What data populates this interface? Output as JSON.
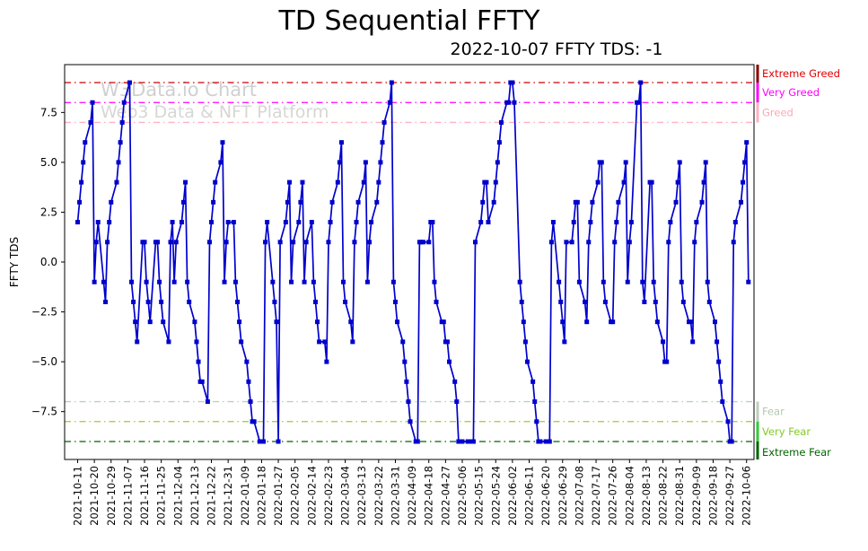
{
  "header": {
    "title": "TD Sequential FFTY",
    "subtitle": "2022-10-07 FFTY TDS: -1"
  },
  "watermark": {
    "line1": "W3Data.io Chart",
    "line2": "Web3 Data & NFT Platform"
  },
  "chart_data": {
    "type": "line",
    "title": "TD Sequential FFTY",
    "subtitle": "2022-10-07 FFTY TDS: -1",
    "ylabel": "FFTY TDS",
    "ylim": [
      -9.9,
      9.9
    ],
    "x_start": "2021-10-11",
    "x_domain_days": [
      -7,
      364
    ],
    "grid": false,
    "legend": "none",
    "line_color": "#0000cd",
    "marker": "square",
    "yticks": [
      {
        "value": 7.5,
        "label": "7.5"
      },
      {
        "value": 5.0,
        "label": "5.0"
      },
      {
        "value": 2.5,
        "label": "2.5"
      },
      {
        "value": 0.0,
        "label": "0.0"
      },
      {
        "value": -2.5,
        "label": "−2.5"
      },
      {
        "value": -5.0,
        "label": "−5.0"
      },
      {
        "value": -7.5,
        "label": "−7.5"
      }
    ],
    "xtick_labels": [
      "2021-10-11",
      "2021-10-20",
      "2021-10-29",
      "2021-11-07",
      "2021-11-16",
      "2021-11-25",
      "2021-12-04",
      "2021-12-13",
      "2021-12-22",
      "2021-12-31",
      "2022-01-09",
      "2022-01-18",
      "2022-01-27",
      "2022-02-05",
      "2022-02-14",
      "2022-02-23",
      "2022-03-04",
      "2022-03-13",
      "2022-03-22",
      "2022-03-31",
      "2022-04-09",
      "2022-04-18",
      "2022-04-27",
      "2022-05-06",
      "2022-05-15",
      "2022-05-24",
      "2022-06-02",
      "2022-06-11",
      "2022-06-20",
      "2022-06-29",
      "2022-07-08",
      "2022-07-17",
      "2022-07-26",
      "2022-08-04",
      "2022-08-13",
      "2022-08-22",
      "2022-08-31",
      "2022-09-09",
      "2022-09-18",
      "2022-09-27",
      "2022-10-06"
    ],
    "thresholds": [
      {
        "value": 9,
        "label": "Extreme Greed",
        "line_color": "#cc0000",
        "label_color": "#e00000",
        "band": [
          9,
          9.9
        ],
        "band_color": "#8b0000",
        "label_at": 9.45
      },
      {
        "value": 8,
        "label": "Very Greed",
        "line_color": "#ff00ff",
        "label_color": "#ff00ff",
        "band": [
          8,
          9
        ],
        "band_color": "#ff00ff",
        "label_at": 8.5
      },
      {
        "value": 7,
        "label": "Greed",
        "line_color": "#ffb0c0",
        "label_color": "#ffa6b8",
        "band": [
          7,
          8
        ],
        "band_color": "#ffb0c0",
        "label_at": 7.5
      },
      {
        "value": -7,
        "label": "Fear",
        "line_color": "#bccfbc",
        "label_color": "#b4c8b4",
        "band": [
          -7,
          -8
        ],
        "band_color": "#bccfbc",
        "label_at": -7.5
      },
      {
        "value": -8,
        "label": "Very Fear",
        "line_color": "#9acd32",
        "label_color": "#86c82a",
        "band": [
          -8,
          -9
        ],
        "band_color": "#33cc33",
        "label_at": -8.5
      },
      {
        "value": -9,
        "label": "Extreme Fear",
        "line_color": "#006400",
        "label_color": "#006400",
        "band": [
          -9,
          -9.9
        ],
        "band_color": "#006400",
        "label_at": -9.55
      }
    ],
    "series": [
      {
        "name": "FFTY TDS",
        "dates": [
          "2021-10-11",
          "2021-10-12",
          "2021-10-13",
          "2021-10-14",
          "2021-10-15",
          "2021-10-18",
          "2021-10-19",
          "2021-10-20",
          "2021-10-21",
          "2021-10-22",
          "2021-10-25",
          "2021-10-26",
          "2021-10-27",
          "2021-10-28",
          "2021-10-29",
          "2021-11-01",
          "2021-11-02",
          "2021-11-03",
          "2021-11-04",
          "2021-11-05",
          "2021-11-08",
          "2021-11-09",
          "2021-11-10",
          "2021-11-11",
          "2021-11-12",
          "2021-11-15",
          "2021-11-16",
          "2021-11-17",
          "2021-11-18",
          "2021-11-19",
          "2021-11-22",
          "2021-11-23",
          "2021-11-24",
          "2021-11-25",
          "2021-11-26",
          "2021-11-29",
          "2021-11-30",
          "2021-12-01",
          "2021-12-02",
          "2021-12-03",
          "2021-12-06",
          "2021-12-07",
          "2021-12-08",
          "2021-12-09",
          "2021-12-10",
          "2021-12-13",
          "2021-12-14",
          "2021-12-15",
          "2021-12-16",
          "2021-12-17",
          "2021-12-20",
          "2021-12-21",
          "2021-12-22",
          "2021-12-23",
          "2021-12-24",
          "2021-12-27",
          "2021-12-28",
          "2021-12-29",
          "2021-12-30",
          "2021-12-31",
          "2022-01-03",
          "2022-01-04",
          "2022-01-05",
          "2022-01-06",
          "2022-01-07",
          "2022-01-10",
          "2022-01-11",
          "2022-01-12",
          "2022-01-13",
          "2022-01-14",
          "2022-01-17",
          "2022-01-18",
          "2022-01-19",
          "2022-01-20",
          "2022-01-21",
          "2022-01-24",
          "2022-01-25",
          "2022-01-26",
          "2022-01-27",
          "2022-01-28",
          "2022-01-31",
          "2022-02-01",
          "2022-02-02",
          "2022-02-03",
          "2022-02-04",
          "2022-02-07",
          "2022-02-08",
          "2022-02-09",
          "2022-02-10",
          "2022-02-11",
          "2022-02-14",
          "2022-02-15",
          "2022-02-16",
          "2022-02-17",
          "2022-02-18",
          "2022-02-21",
          "2022-02-22",
          "2022-02-23",
          "2022-02-24",
          "2022-02-25",
          "2022-02-28",
          "2022-03-01",
          "2022-03-02",
          "2022-03-03",
          "2022-03-04",
          "2022-03-07",
          "2022-03-08",
          "2022-03-09",
          "2022-03-10",
          "2022-03-11",
          "2022-03-14",
          "2022-03-15",
          "2022-03-16",
          "2022-03-17",
          "2022-03-18",
          "2022-03-21",
          "2022-03-22",
          "2022-03-23",
          "2022-03-24",
          "2022-03-25",
          "2022-03-28",
          "2022-03-29",
          "2022-03-30",
          "2022-03-31",
          "2022-04-01",
          "2022-04-04",
          "2022-04-05",
          "2022-04-06",
          "2022-04-07",
          "2022-04-08",
          "2022-04-11",
          "2022-04-12",
          "2022-04-13",
          "2022-04-14",
          "2022-04-15",
          "2022-04-18",
          "2022-04-19",
          "2022-04-20",
          "2022-04-21",
          "2022-04-22",
          "2022-04-25",
          "2022-04-26",
          "2022-04-27",
          "2022-04-28",
          "2022-04-29",
          "2022-05-02",
          "2022-05-03",
          "2022-05-04",
          "2022-05-05",
          "2022-05-06",
          "2022-05-09",
          "2022-05-10",
          "2022-05-11",
          "2022-05-12",
          "2022-05-13",
          "2022-05-16",
          "2022-05-17",
          "2022-05-18",
          "2022-05-19",
          "2022-05-20",
          "2022-05-23",
          "2022-05-24",
          "2022-05-25",
          "2022-05-26",
          "2022-05-27",
          "2022-05-30",
          "2022-05-31",
          "2022-06-01",
          "2022-06-02",
          "2022-06-03",
          "2022-06-06",
          "2022-06-07",
          "2022-06-08",
          "2022-06-09",
          "2022-06-10",
          "2022-06-13",
          "2022-06-14",
          "2022-06-15",
          "2022-06-16",
          "2022-06-17",
          "2022-06-20",
          "2022-06-21",
          "2022-06-22",
          "2022-06-23",
          "2022-06-24",
          "2022-06-27",
          "2022-06-28",
          "2022-06-29",
          "2022-06-30",
          "2022-07-01",
          "2022-07-04",
          "2022-07-05",
          "2022-07-06",
          "2022-07-07",
          "2022-07-08",
          "2022-07-11",
          "2022-07-12",
          "2022-07-13",
          "2022-07-14",
          "2022-07-15",
          "2022-07-18",
          "2022-07-19",
          "2022-07-20",
          "2022-07-21",
          "2022-07-22",
          "2022-07-25",
          "2022-07-26",
          "2022-07-27",
          "2022-07-28",
          "2022-07-29",
          "2022-08-01",
          "2022-08-02",
          "2022-08-03",
          "2022-08-04",
          "2022-08-05",
          "2022-08-08",
          "2022-08-09",
          "2022-08-10",
          "2022-08-11",
          "2022-08-12",
          "2022-08-15",
          "2022-08-16",
          "2022-08-17",
          "2022-08-18",
          "2022-08-19",
          "2022-08-22",
          "2022-08-23",
          "2022-08-24",
          "2022-08-25",
          "2022-08-26",
          "2022-08-29",
          "2022-08-30",
          "2022-08-31",
          "2022-09-01",
          "2022-09-02",
          "2022-09-05",
          "2022-09-06",
          "2022-09-07",
          "2022-09-08",
          "2022-09-09",
          "2022-09-12",
          "2022-09-13",
          "2022-09-14",
          "2022-09-15",
          "2022-09-16",
          "2022-09-19",
          "2022-09-20",
          "2022-09-21",
          "2022-09-22",
          "2022-09-23",
          "2022-09-26",
          "2022-09-27",
          "2022-09-28",
          "2022-09-29",
          "2022-09-30",
          "2022-10-03",
          "2022-10-04",
          "2022-10-05",
          "2022-10-06",
          "2022-10-07"
        ],
        "values": [
          2,
          3,
          4,
          5,
          6,
          7,
          8,
          -1,
          1,
          2,
          -1,
          -2,
          1,
          2,
          3,
          4,
          5,
          6,
          7,
          8,
          9,
          -1,
          -2,
          -3,
          -4,
          1,
          1,
          -1,
          -2,
          -3,
          1,
          1,
          -1,
          -2,
          -3,
          -4,
          1,
          2,
          -1,
          1,
          2,
          3,
          4,
          -1,
          -2,
          -3,
          -4,
          -5,
          -6,
          -6,
          -7,
          1,
          2,
          3,
          4,
          5,
          6,
          -1,
          1,
          2,
          2,
          -1,
          -2,
          -3,
          -4,
          -5,
          -6,
          -7,
          -8,
          -8,
          -9,
          -9,
          -9,
          1,
          2,
          -1,
          -2,
          -3,
          -9,
          1,
          2,
          3,
          4,
          -1,
          1,
          2,
          3,
          4,
          -1,
          1,
          2,
          -1,
          -2,
          -3,
          -4,
          -4,
          -5,
          1,
          2,
          3,
          4,
          5,
          6,
          -1,
          -2,
          -3,
          -4,
          1,
          2,
          3,
          4,
          5,
          -1,
          1,
          2,
          3,
          4,
          5,
          6,
          7,
          8,
          9,
          -1,
          -2,
          -3,
          -4,
          -5,
          -6,
          -7,
          -8,
          -9,
          -9,
          1,
          1,
          1,
          1,
          2,
          2,
          -1,
          -2,
          -3,
          -3,
          -4,
          -4,
          -5,
          -6,
          -7,
          -9,
          -9,
          -9,
          -9,
          -9,
          -9,
          -9,
          1,
          2,
          3,
          4,
          4,
          2,
          3,
          4,
          5,
          6,
          7,
          8,
          8,
          9,
          9,
          8,
          -1,
          -2,
          -3,
          -4,
          -5,
          -6,
          -7,
          -8,
          -9,
          -9,
          -9,
          -9,
          -9,
          1,
          2,
          -1,
          -2,
          -3,
          -4,
          1,
          1,
          2,
          3,
          3,
          -1,
          -2,
          -3,
          1,
          2,
          3,
          4,
          5,
          5,
          -1,
          -2,
          -3,
          -3,
          1,
          2,
          3,
          4,
          5,
          -1,
          1,
          2,
          8,
          8,
          9,
          -1,
          -2,
          4,
          4,
          -1,
          -2,
          -3,
          -4,
          -5,
          -5,
          1,
          2,
          3,
          4,
          5,
          -1,
          -2,
          -3,
          -3,
          -4,
          1,
          2,
          3,
          4,
          5,
          -1,
          -2,
          -3,
          -4,
          -5,
          -6,
          -7,
          -8,
          -9,
          -9,
          1,
          2,
          3,
          4,
          5,
          6,
          -1
        ]
      }
    ]
  }
}
